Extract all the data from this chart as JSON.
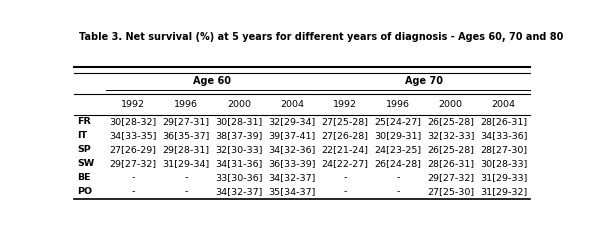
{
  "title": "Table 3. Net survival (%) at 5 years for different years of diagnosis - Ages 60, 70 and 80",
  "years": [
    "1992",
    "1996",
    "2000",
    "2004"
  ],
  "countries": [
    "FR",
    "IT",
    "SP",
    "SW",
    "BE",
    "PO"
  ],
  "age60": {
    "FR": [
      "30[28-32]",
      "29[27-31]",
      "30[28-31]",
      "32[29-34]"
    ],
    "IT": [
      "34[33-35]",
      "36[35-37]",
      "38[37-39]",
      "39[37-41]"
    ],
    "SP": [
      "27[26-29]",
      "29[28-31]",
      "32[30-33]",
      "34[32-36]"
    ],
    "SW": [
      "29[27-32]",
      "31[29-34]",
      "34[31-36]",
      "36[33-39]"
    ],
    "BE": [
      "-",
      "-",
      "33[30-36]",
      "34[32-37]"
    ],
    "PO": [
      "-",
      "-",
      "34[32-37]",
      "35[34-37]"
    ]
  },
  "age70": {
    "FR": [
      "27[25-28]",
      "25[24-27]",
      "26[25-28]",
      "28[26-31]"
    ],
    "IT": [
      "27[26-28]",
      "30[29-31]",
      "32[32-33]",
      "34[33-36]"
    ],
    "SP": [
      "22[21-24]",
      "24[23-25]",
      "26[25-28]",
      "28[27-30]"
    ],
    "SW": [
      "24[22-27]",
      "26[24-28]",
      "28[26-31]",
      "30[28-33]"
    ],
    "BE": [
      "-",
      "-",
      "29[27-32]",
      "31[29-33]"
    ],
    "PO": [
      "-",
      "-",
      "27[25-30]",
      "31[29-32]"
    ]
  },
  "title_fontsize": 7.0,
  "header_fontsize": 7.0,
  "data_fontsize": 6.8,
  "bg_color": "white"
}
